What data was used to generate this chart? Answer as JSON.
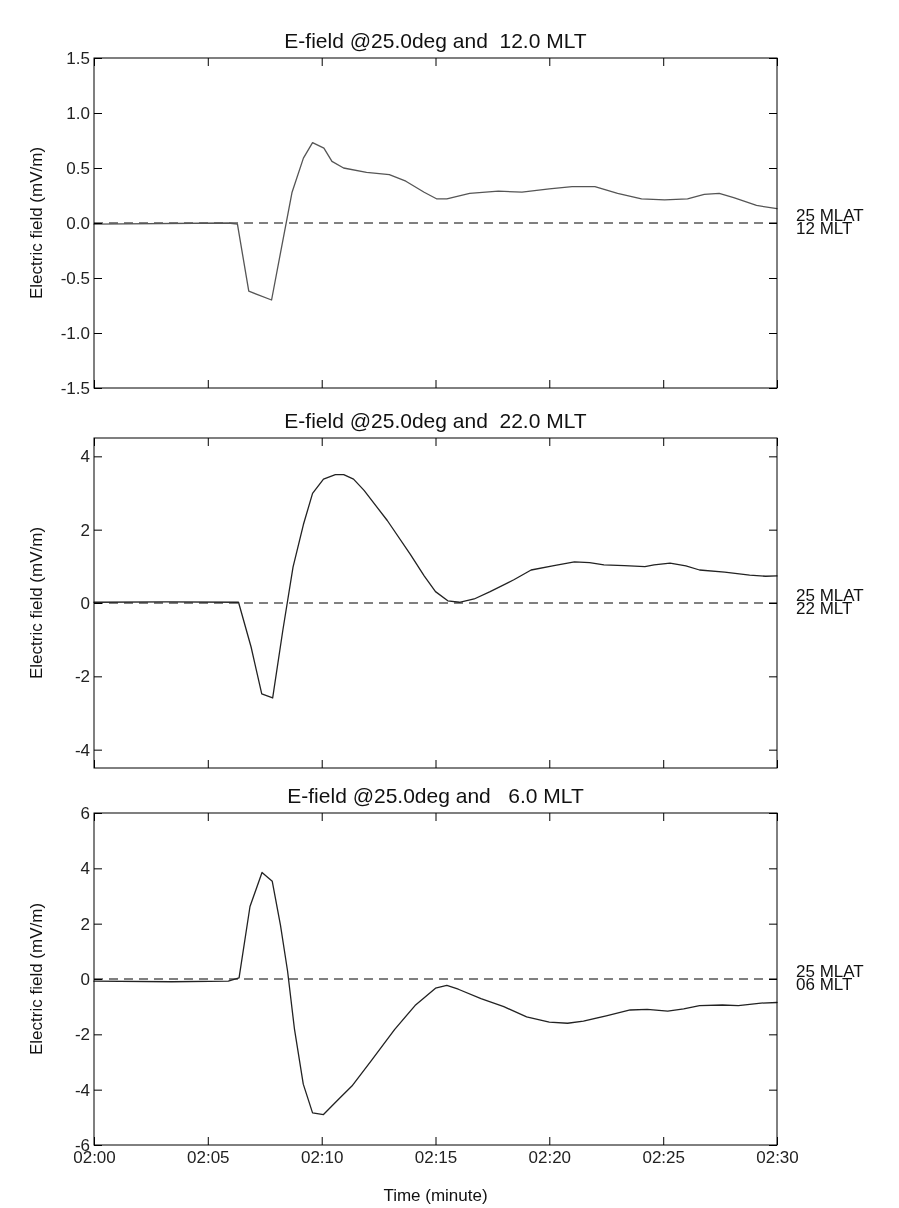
{
  "chart_data": [
    {
      "type": "line",
      "title": "E-field @25.0deg and  12.0 MLT",
      "ylabel": "Electric field (mV/m)",
      "tick_labels": "y",
      "line_style": "solid",
      "marker": "none",
      "xlim": [
        2,
        2.5
      ],
      "ylim": [
        -1.5,
        1.5
      ],
      "yticks": [
        -1.5,
        {
          "value": -1,
          "label": "-1.0"
        },
        -0.5,
        {
          "value": 0,
          "label": "0.0"
        },
        0.5,
        {
          "value": 1,
          "label": "1.0"
        },
        1.5
      ],
      "ref_lines": [
        {
          "axis": "y",
          "value": 0,
          "line_style": "dashed",
          "color": "#000000"
        }
      ],
      "annotations": [
        "25 MLAT",
        "12 MLT"
      ],
      "series": [
        {
          "color": "#555555",
          "x": [
            2,
            2.0983,
            2.105,
            2.1133,
            2.13,
            2.1367,
            2.145,
            2.1533,
            2.16,
            2.1683,
            2.1742,
            2.1827,
            2.1995,
            2.2162,
            2.2283,
            2.2417,
            2.2507,
            2.2583,
            2.275,
            2.296,
            2.3133,
            2.3333,
            2.35,
            2.3667,
            2.3833,
            2.4008,
            2.4177,
            2.4345,
            2.4467,
            2.4577,
            2.4683,
            2.485,
            2.5
          ],
          "values": [
            -0.01,
            0,
            -0.01,
            -0.62,
            -0.7,
            -0.26,
            0.28,
            0.59,
            0.73,
            0.68,
            0.56,
            0.5,
            0.46,
            0.44,
            0.38,
            0.28,
            0.22,
            0.22,
            0.27,
            0.29,
            0.28,
            0.31,
            0.33,
            0.33,
            0.27,
            0.22,
            0.21,
            0.22,
            0.26,
            0.27,
            0.23,
            0.16,
            0.13
          ]
        }
      ]
    },
    {
      "type": "line",
      "title": "E-field @25.0deg and  22.0 MLT",
      "ylabel": "Electric field (mV/m)",
      "tick_labels": "y",
      "line_style": "solid",
      "marker": "none",
      "xlim": [
        2,
        2.5
      ],
      "ylim": [
        -4.5,
        4.5
      ],
      "yticks": [
        -4,
        -2,
        0,
        2,
        4
      ],
      "ref_lines": [
        {
          "axis": "y",
          "value": 0,
          "line_style": "dashed",
          "color": "#000000"
        }
      ],
      "annotations": [
        "25 MLAT",
        "22 MLT"
      ],
      "series": [
        {
          "color": "#222222",
          "x": [
            2,
            2.0533,
            2.1058,
            2.115,
            2.1228,
            2.1308,
            2.1383,
            2.1457,
            2.1533,
            2.16,
            2.168,
            2.1767,
            2.1828,
            2.19,
            2.1977,
            2.2147,
            2.2317,
            2.2417,
            2.25,
            2.259,
            2.2675,
            2.2783,
            2.29,
            2.3077,
            2.32,
            2.3367,
            2.3517,
            2.3628,
            2.3733,
            2.3883,
            2.4033,
            2.41,
            2.4217,
            2.4333,
            2.4433,
            2.4617,
            2.48,
            2.4917,
            2.5
          ],
          "values": [
            0.02,
            0.03,
            0.02,
            -1.2,
            -2.48,
            -2.59,
            -0.73,
            0.98,
            2.14,
            2.99,
            3.38,
            3.5,
            3.5,
            3.38,
            3.07,
            2.25,
            1.32,
            0.74,
            0.31,
            0.06,
            0.02,
            0.11,
            0.31,
            0.64,
            0.9,
            1.02,
            1.12,
            1.1,
            1.04,
            1.02,
            0.99,
            1.04,
            1.09,
            1.01,
            0.9,
            0.84,
            0.76,
            0.73,
            0.74
          ]
        }
      ]
    },
    {
      "type": "line",
      "title": "E-field @25.0deg and   6.0 MLT",
      "xlabel": "Time (minute)",
      "ylabel": "Electric field (mV/m)",
      "line_style": "solid",
      "marker": "none",
      "xlim": [
        2,
        2.5
      ],
      "xticks": [
        {
          "value": 2,
          "label": "02:00"
        },
        {
          "value": 2.0833,
          "label": "02:05"
        },
        {
          "value": 2.1667,
          "label": "02:10"
        },
        {
          "value": 2.25,
          "label": "02:15"
        },
        {
          "value": 2.3333,
          "label": "02:20"
        },
        {
          "value": 2.4167,
          "label": "02:25"
        },
        {
          "value": 2.5,
          "label": "02:30"
        }
      ],
      "ylim": [
        -6,
        6
      ],
      "yticks": [
        -6,
        -4,
        -2,
        0,
        2,
        4,
        6
      ],
      "ref_lines": [
        {
          "axis": "y",
          "value": 0,
          "line_style": "dashed",
          "color": "#000000"
        }
      ],
      "annotations": [
        "25 MLAT",
        "06 MLT"
      ],
      "series": [
        {
          "color": "#222222",
          "x": [
            2,
            2.0567,
            2.0983,
            2.1062,
            2.1142,
            2.123,
            2.1305,
            2.1365,
            2.1417,
            2.1467,
            2.1532,
            2.16,
            2.168,
            2.1783,
            2.1888,
            2.2033,
            2.22,
            2.235,
            2.25,
            2.2583,
            2.2667,
            2.2833,
            2.3,
            2.3167,
            2.3333,
            2.3467,
            2.3583,
            2.375,
            2.3925,
            2.405,
            2.42,
            2.4317,
            2.4433,
            2.46,
            2.4717,
            2.4883,
            2.5
          ],
          "values": [
            -0.08,
            -0.1,
            -0.08,
            0.04,
            2.62,
            3.85,
            3.53,
            1.95,
            0.29,
            -1.79,
            -3.8,
            -4.84,
            -4.9,
            -4.38,
            -3.87,
            -2.93,
            -1.83,
            -0.96,
            -0.33,
            -0.23,
            -0.37,
            -0.71,
            -1,
            -1.37,
            -1.56,
            -1.6,
            -1.52,
            -1.33,
            -1.12,
            -1.1,
            -1.16,
            -1.08,
            -0.96,
            -0.94,
            -0.96,
            -0.87,
            -0.85
          ]
        }
      ]
    }
  ]
}
